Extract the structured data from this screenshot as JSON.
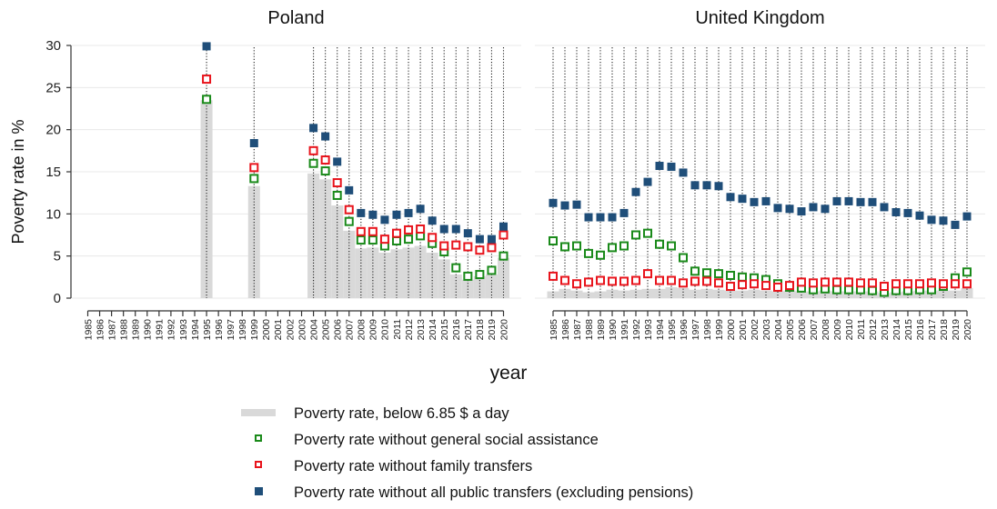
{
  "chart_data": {
    "type": "bar",
    "ylabel": "Poverty rate in %",
    "xlabel": "year",
    "ylim": [
      0,
      30
    ],
    "yticks": [
      0,
      5,
      10,
      15,
      20,
      25,
      30
    ],
    "grid": true,
    "x": [
      1985,
      1986,
      1987,
      1988,
      1989,
      1990,
      1991,
      1992,
      1993,
      1994,
      1995,
      1996,
      1997,
      1998,
      1999,
      2000,
      2001,
      2002,
      2003,
      2004,
      2005,
      2006,
      2007,
      2008,
      2009,
      2010,
      2011,
      2012,
      2013,
      2014,
      2015,
      2016,
      2017,
      2018,
      2019,
      2020
    ],
    "legend_position": "bottom",
    "legend": [
      {
        "key": "bar",
        "label": "Poverty rate, below 6.85 $ a day",
        "color": "#d9d9d9",
        "marker": "bar"
      },
      {
        "key": "no_social",
        "label": "Poverty rate without general social assistance",
        "color": "#1a8a1a",
        "marker": "hollow-square"
      },
      {
        "key": "no_family",
        "label": "Poverty rate without family transfers",
        "color": "#e8141c",
        "marker": "hollow-square"
      },
      {
        "key": "no_public",
        "label": "Poverty rate without all public transfers (excluding pensions)",
        "color": "#1f4e79",
        "marker": "filled-square"
      }
    ],
    "panels": [
      {
        "title": "Poland",
        "years": [
          1995,
          1999,
          2004,
          2005,
          2006,
          2007,
          2008,
          2009,
          2010,
          2011,
          2012,
          2013,
          2014,
          2015,
          2016,
          2017,
          2018,
          2019,
          2020
        ],
        "series": {
          "bar": [
            23.5,
            13.3,
            14.8,
            14.1,
            11.0,
            8.0,
            5.9,
            6.0,
            5.4,
            5.8,
            6.0,
            6.2,
            5.4,
            4.6,
            2.8,
            2.2,
            2.6,
            2.8,
            4.8
          ],
          "no_social": [
            23.6,
            14.2,
            16.0,
            15.1,
            12.2,
            9.1,
            6.9,
            6.9,
            6.2,
            6.8,
            7.0,
            7.4,
            6.5,
            5.5,
            3.6,
            2.6,
            2.8,
            3.3,
            5.0
          ],
          "no_family": [
            26.0,
            15.5,
            17.5,
            16.4,
            13.7,
            10.5,
            7.9,
            7.9,
            7.0,
            7.7,
            8.1,
            8.2,
            7.2,
            6.2,
            6.3,
            6.1,
            5.7,
            6.0,
            7.5
          ],
          "no_public": [
            29.9,
            18.4,
            20.2,
            19.2,
            16.2,
            12.8,
            10.1,
            9.9,
            9.3,
            9.9,
            10.1,
            10.6,
            9.2,
            8.2,
            8.2,
            7.7,
            7.0,
            7.0,
            8.5
          ]
        }
      },
      {
        "title": "United Kingdom",
        "years": [
          1985,
          1986,
          1987,
          1988,
          1989,
          1990,
          1991,
          1992,
          1993,
          1994,
          1995,
          1996,
          1997,
          1998,
          1999,
          2000,
          2001,
          2002,
          2003,
          2004,
          2005,
          2006,
          2007,
          2008,
          2009,
          2010,
          2011,
          2012,
          2013,
          2014,
          2015,
          2016,
          2017,
          2018,
          2019,
          2020
        ],
        "series": {
          "bar": [
            0.8,
            1.1,
            0.9,
            0.7,
            0.8,
            1.0,
            0.9,
            1.0,
            1.1,
            1.1,
            1.3,
            1.2,
            1.0,
            1.1,
            1.0,
            0.9,
            0.9,
            1.0,
            0.9,
            0.8,
            0.9,
            0.8,
            0.8,
            0.9,
            0.8,
            0.8,
            0.8,
            0.8,
            0.6,
            0.7,
            0.8,
            0.9,
            0.9,
            0.9,
            0.9,
            1.2
          ],
          "no_social": [
            6.8,
            6.1,
            6.2,
            5.3,
            5.1,
            6.0,
            6.2,
            7.5,
            7.7,
            6.4,
            6.2,
            4.8,
            3.2,
            3.0,
            2.9,
            2.7,
            2.5,
            2.4,
            2.2,
            1.7,
            1.3,
            1.2,
            1.0,
            1.1,
            1.0,
            1.0,
            1.0,
            0.9,
            0.7,
            0.9,
            0.9,
            1.0,
            1.0,
            1.4,
            2.4,
            3.1
          ],
          "no_family": [
            2.6,
            2.1,
            1.7,
            1.9,
            2.1,
            2.0,
            2.0,
            2.1,
            2.9,
            2.1,
            2.1,
            1.8,
            2.0,
            2.0,
            1.8,
            1.4,
            1.6,
            1.7,
            1.5,
            1.3,
            1.5,
            1.9,
            1.8,
            1.9,
            1.9,
            1.9,
            1.8,
            1.8,
            1.4,
            1.7,
            1.7,
            1.7,
            1.8,
            1.7,
            1.7,
            1.7
          ],
          "no_public": [
            11.3,
            11.0,
            11.1,
            9.6,
            9.6,
            9.6,
            10.1,
            12.6,
            13.8,
            15.7,
            15.6,
            14.9,
            13.4,
            13.4,
            13.3,
            12.0,
            11.8,
            11.4,
            11.5,
            10.7,
            10.6,
            10.3,
            10.8,
            10.6,
            11.5,
            11.5,
            11.4,
            11.4,
            10.8,
            10.2,
            10.1,
            9.8,
            9.3,
            9.2,
            8.7,
            9.7
          ]
        }
      }
    ]
  }
}
